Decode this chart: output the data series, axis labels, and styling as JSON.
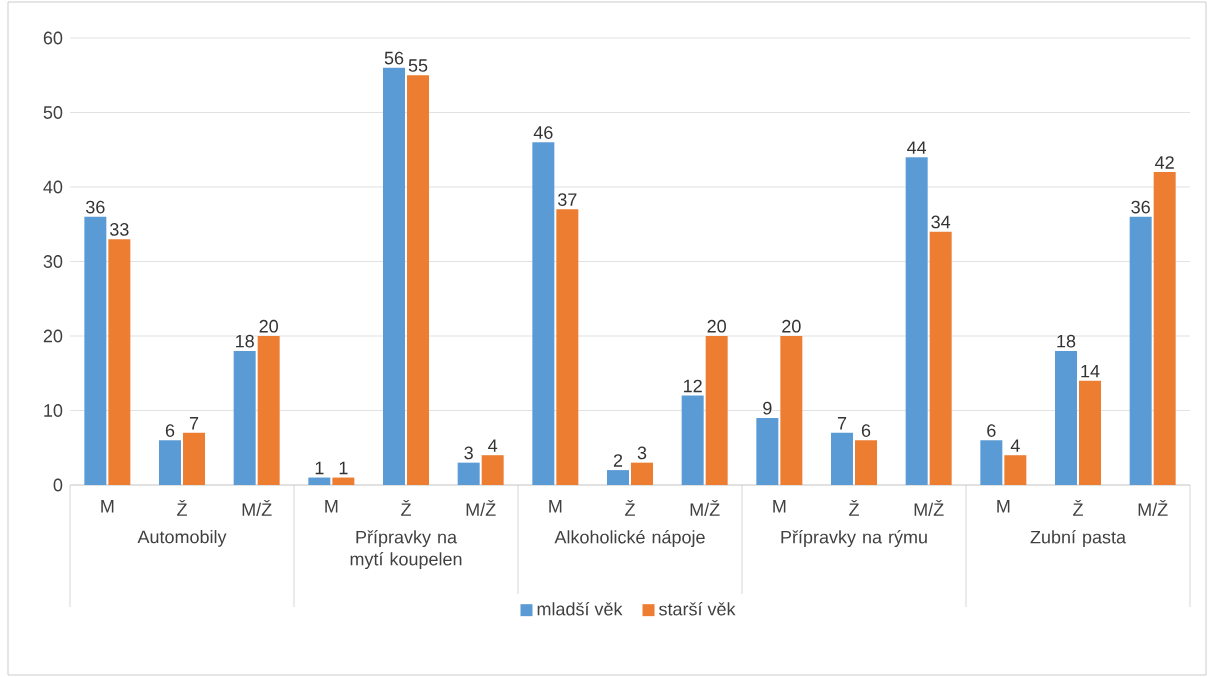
{
  "chart_data": {
    "type": "bar",
    "categories": [
      "M",
      "Ž",
      "M/Ž",
      "M",
      "Ž",
      "M/Ž",
      "M",
      "Ž",
      "M/Ž",
      "M",
      "Ž",
      "M/Ž",
      "M",
      "Ž",
      "M/Ž"
    ],
    "annotations": [
      "Automobily",
      "Přípravky na mytí koupelen",
      "Alkoholické nápoje",
      "Přípravky na rýmu",
      "Zubní pasta"
    ],
    "series": [
      {
        "name": "mladší věk",
        "color": "#5b9bd5",
        "values": [
          36,
          6,
          18,
          1,
          56,
          3,
          46,
          2,
          12,
          9,
          7,
          44,
          6,
          18,
          36
        ]
      },
      {
        "name": "starší věk",
        "color": "#ed7d31",
        "values": [
          33,
          7,
          20,
          1,
          55,
          4,
          37,
          3,
          20,
          20,
          6,
          34,
          4,
          14,
          42
        ]
      }
    ],
    "ylim": [
      0,
      60
    ],
    "yticks": [
      0,
      10,
      20,
      30,
      40,
      50,
      60
    ],
    "grid": "y",
    "legend": "bottom",
    "data_labels": true
  }
}
